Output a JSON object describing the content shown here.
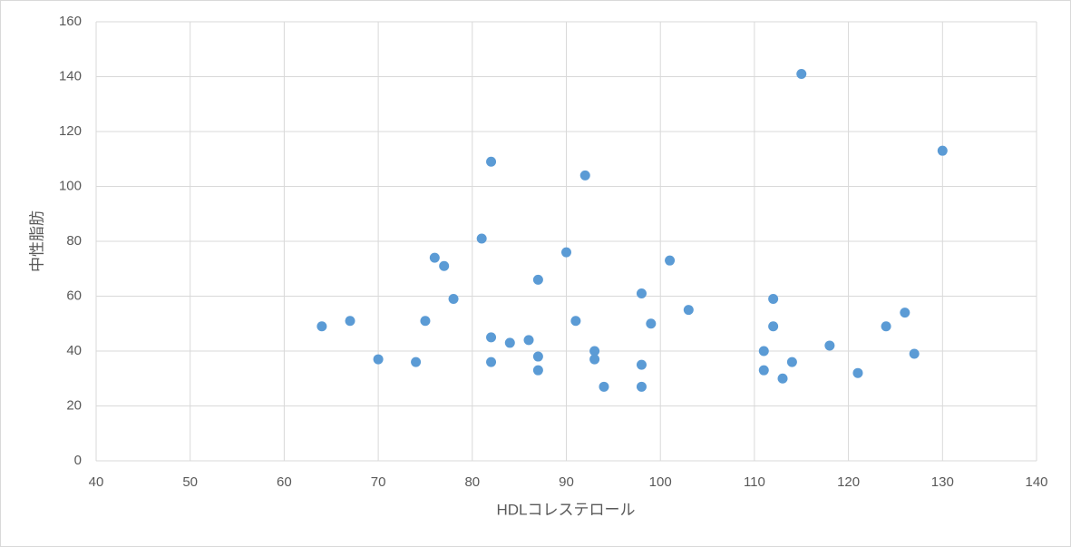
{
  "chart_data": {
    "type": "scatter",
    "x_label": "HDLコレステロール",
    "y_label": "中性脂肪",
    "color": "#5b9bd5",
    "grid": true,
    "xlim": [
      40,
      140
    ],
    "xticks": [
      40,
      50,
      60,
      70,
      80,
      90,
      100,
      110,
      120,
      130,
      140
    ],
    "ylim": [
      0,
      160
    ],
    "yticks": [
      0,
      20,
      40,
      60,
      80,
      100,
      120,
      140,
      160
    ],
    "x": [
      64,
      67,
      70,
      74,
      75,
      76,
      77,
      78,
      81,
      82,
      82,
      82,
      84,
      86,
      87,
      87,
      87,
      90,
      91,
      92,
      93,
      93,
      94,
      98,
      98,
      98,
      99,
      101,
      103,
      111,
      111,
      112,
      112,
      113,
      114,
      115,
      118,
      121,
      124,
      126,
      127,
      130
    ],
    "y": [
      49,
      51,
      37,
      36,
      51,
      74,
      71,
      59,
      81,
      109,
      45,
      36,
      43,
      44,
      66,
      38,
      33,
      76,
      51,
      104,
      40,
      37,
      27,
      61,
      35,
      27,
      50,
      73,
      55,
      40,
      33,
      59,
      49,
      30,
      36,
      141,
      42,
      32,
      49,
      54,
      39,
      113
    ]
  }
}
